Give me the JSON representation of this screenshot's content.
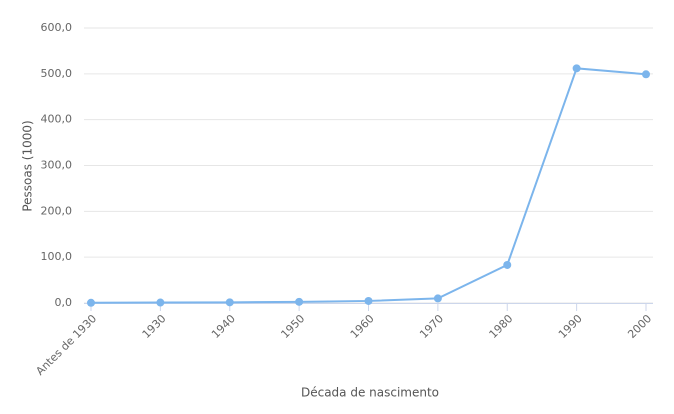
{
  "chart_data": {
    "type": "line",
    "y_label": "Pessoas (1000)",
    "x_label": "Década de nascimento",
    "categories": [
      "Antes de 1930",
      "1930",
      "1940",
      "1950",
      "1960",
      "1970",
      "1980",
      "1990",
      "2000"
    ],
    "values": [
      0.5,
      1,
      1.5,
      2.5,
      4.5,
      10,
      83,
      512,
      499
    ],
    "color": "#7cb5ec",
    "ylim": [
      0,
      600
    ],
    "yticks": [
      {
        "value": 0,
        "label": "0,0"
      },
      {
        "value": 100,
        "label": "100,0"
      },
      {
        "value": 200,
        "label": "200,0"
      },
      {
        "value": 300,
        "label": "300,0"
      },
      {
        "value": 400,
        "label": "400,0"
      },
      {
        "value": 500,
        "label": "500,0"
      },
      {
        "value": 600,
        "label": "600,0"
      }
    ],
    "grid": true
  }
}
